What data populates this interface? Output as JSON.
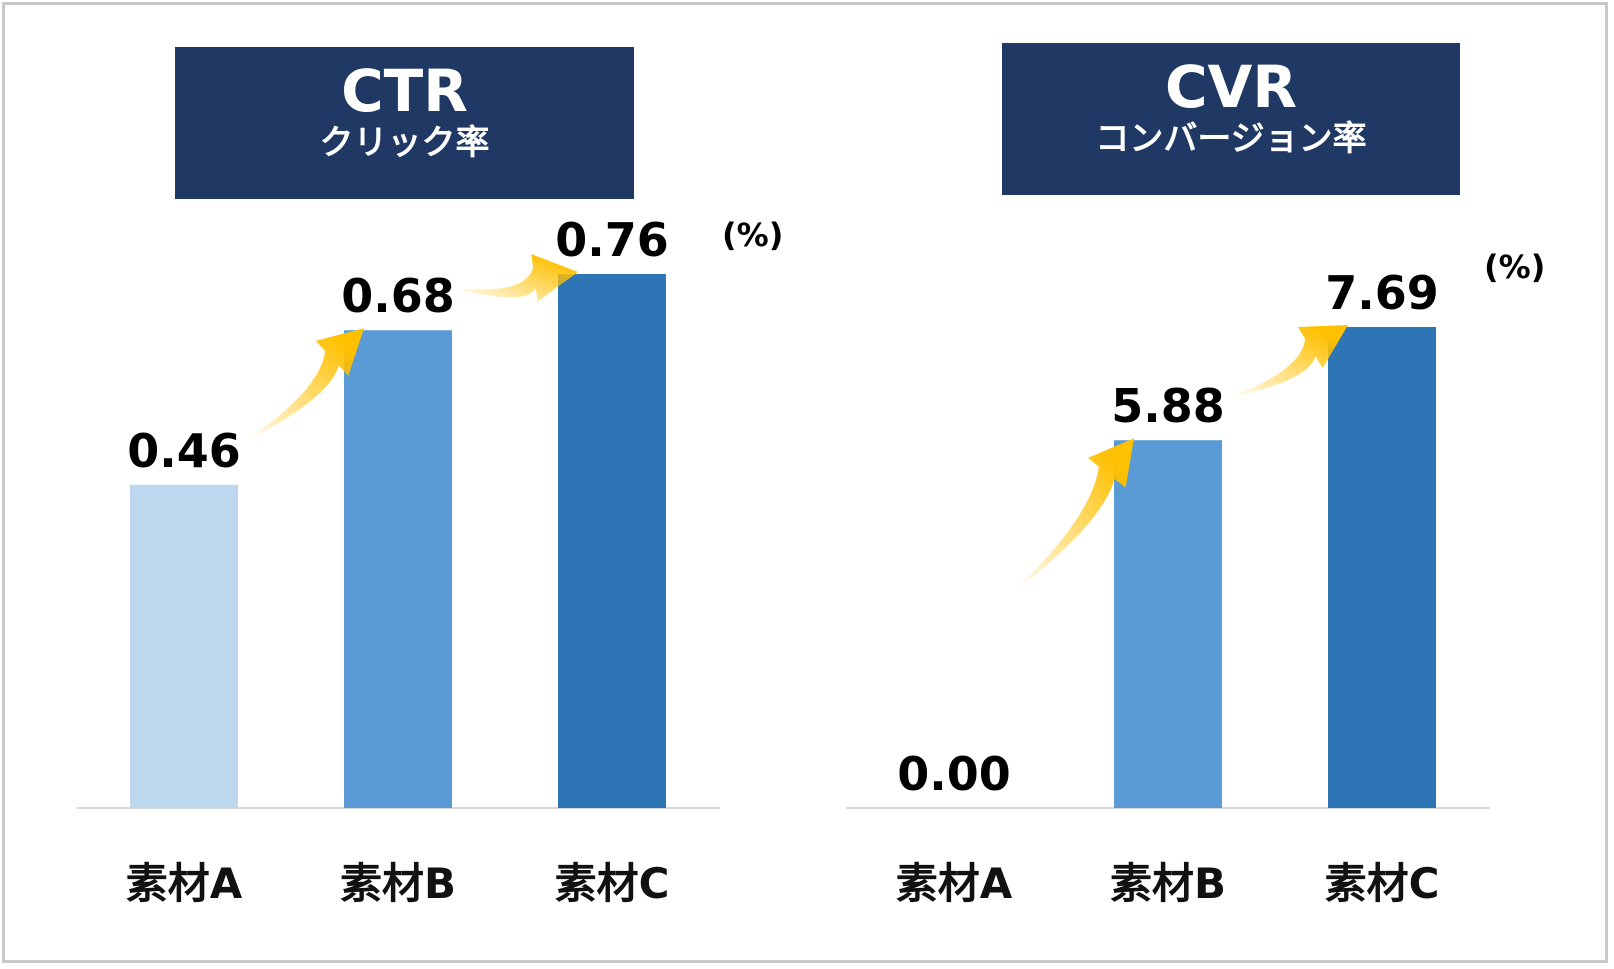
{
  "colors": {
    "title_bg": "#203864",
    "title_text": "#ffffff",
    "arrow": "#ffc000",
    "baseline": "#d9d9d9",
    "bar_a": "#bdd7ee",
    "bar_b": "#5b9bd5",
    "bar_c": "#2e75b6"
  },
  "chart_data": [
    {
      "type": "bar",
      "title": "CTR",
      "subtitle": "クリック率",
      "unit": "(%)",
      "categories": [
        "素材A",
        "素材B",
        "素材C"
      ],
      "values": [
        0.46,
        0.68,
        0.76
      ],
      "value_labels": [
        "0.46",
        "0.68",
        "0.76"
      ],
      "ylim": [
        0,
        0.76
      ],
      "grid": false,
      "arrows": "increase arrows between consecutive bars"
    },
    {
      "type": "bar",
      "title": "CVR",
      "subtitle": "コンバージョン率",
      "unit": "(%)",
      "categories": [
        "素材A",
        "素材B",
        "素材C"
      ],
      "values": [
        0.0,
        5.88,
        7.69
      ],
      "value_labels": [
        "0.00",
        "5.88",
        "7.69"
      ],
      "ylim": [
        0,
        7.69
      ],
      "grid": false,
      "arrows": "increase arrows between consecutive bars"
    }
  ]
}
